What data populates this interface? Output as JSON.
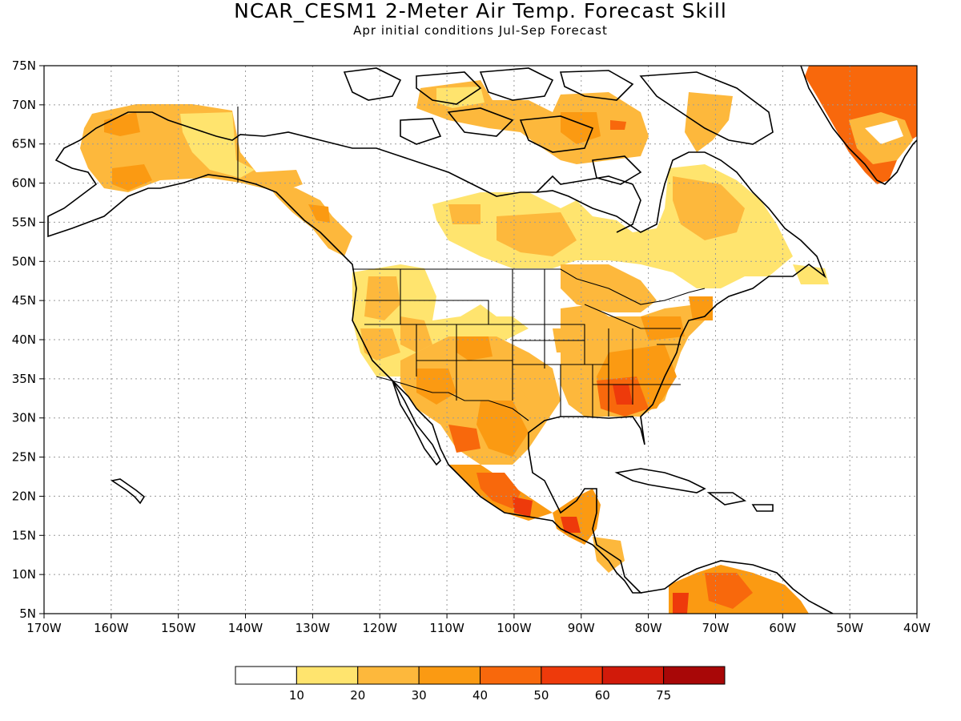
{
  "title": "NCAR_CESM1 2-Meter Air Temp. Forecast Skill",
  "subtitle": "Apr initial conditions  Jul-Sep Forecast",
  "map": {
    "lon_range": [
      -170,
      -40
    ],
    "lat_range": [
      5,
      75
    ],
    "lon_ticks": [
      -170,
      -160,
      -150,
      -140,
      -130,
      -120,
      -110,
      -100,
      -90,
      -80,
      -70,
      -60,
      -50,
      -40
    ],
    "lat_ticks": [
      5,
      10,
      15,
      20,
      25,
      30,
      35,
      40,
      45,
      50,
      55,
      60,
      65,
      70,
      75
    ],
    "lon_tick_labels": [
      "170W",
      "160W",
      "150W",
      "140W",
      "130W",
      "120W",
      "110W",
      "100W",
      "90W",
      "80W",
      "70W",
      "60W",
      "50W",
      "40W"
    ],
    "lat_tick_labels": [
      "5N",
      "10N",
      "15N",
      "20N",
      "25N",
      "30N",
      "35N",
      "40N",
      "45N",
      "50N",
      "55N",
      "60N",
      "65N",
      "70N",
      "75N"
    ],
    "grid": true
  },
  "colorbar": {
    "colors": [
      "#ffffff",
      "#ffe46e",
      "#fdb83c",
      "#fb9a12",
      "#f8680c",
      "#ee3a0b",
      "#d11a0a",
      "#a80707"
    ],
    "labels": [
      "10",
      "20",
      "30",
      "40",
      "50",
      "60",
      "75"
    ]
  }
}
